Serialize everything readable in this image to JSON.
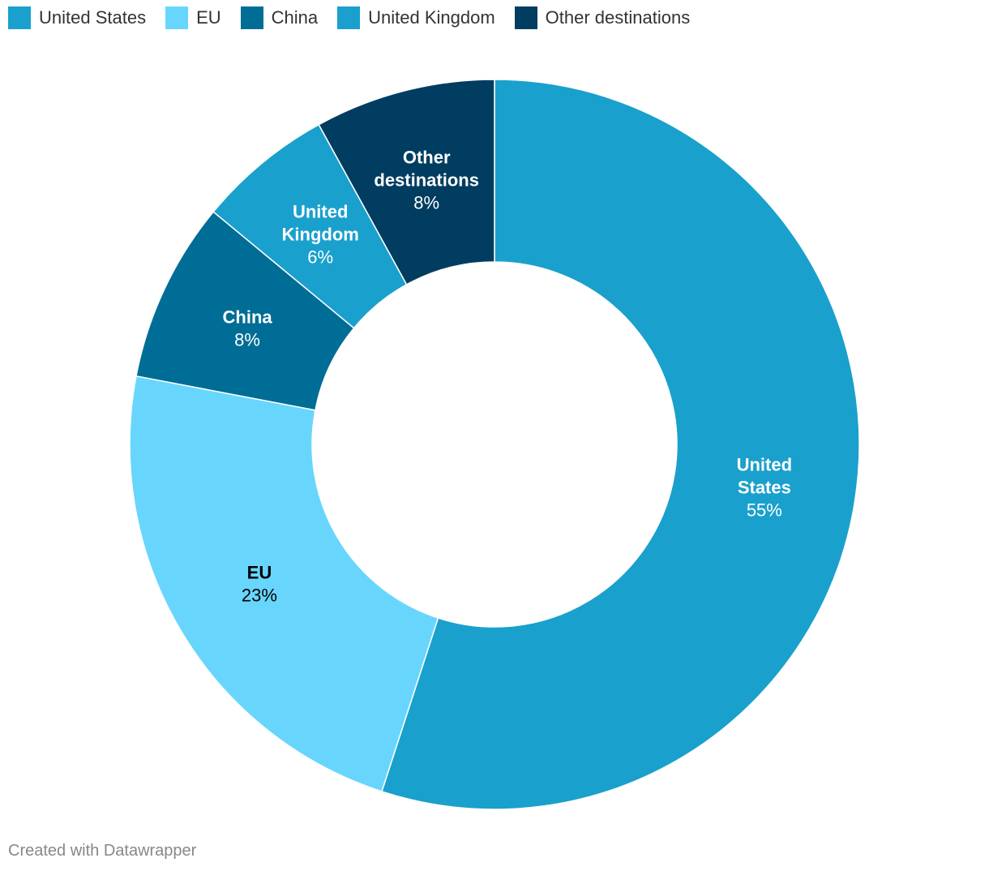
{
  "chart_data": {
    "type": "pie",
    "donut": true,
    "title": "",
    "slices": [
      {
        "name": "United States",
        "label_lines": [
          "United",
          "States"
        ],
        "value": 55,
        "value_label": "55%",
        "color": "#1aa0cc",
        "text_color": "#ffffff"
      },
      {
        "name": "EU",
        "label_lines": [
          "EU"
        ],
        "value": 23,
        "value_label": "23%",
        "color": "#68d6fc",
        "text_color": "#000000"
      },
      {
        "name": "China",
        "label_lines": [
          "China"
        ],
        "value": 8,
        "value_label": "8%",
        "color": "#006d96",
        "text_color": "#ffffff"
      },
      {
        "name": "United Kingdom",
        "label_lines": [
          "United",
          "Kingdom"
        ],
        "value": 6,
        "value_label": "6%",
        "color": "#1aa0cc",
        "text_color": "#ffffff"
      },
      {
        "name": "Other destinations",
        "label_lines": [
          "Other",
          "destinations"
        ],
        "value": 8,
        "value_label": "8%",
        "color": "#013d61",
        "text_color": "#ffffff"
      }
    ],
    "legend_placement": "top-left"
  },
  "legend": [
    {
      "label": "United States",
      "color": "#1aa0cc"
    },
    {
      "label": "EU",
      "color": "#68d6fc"
    },
    {
      "label": "China",
      "color": "#006d96"
    },
    {
      "label": "United Kingdom",
      "color": "#1aa0cc"
    },
    {
      "label": "Other destinations",
      "color": "#013d61"
    }
  ],
  "footer": {
    "credit": "Created with Datawrapper"
  }
}
